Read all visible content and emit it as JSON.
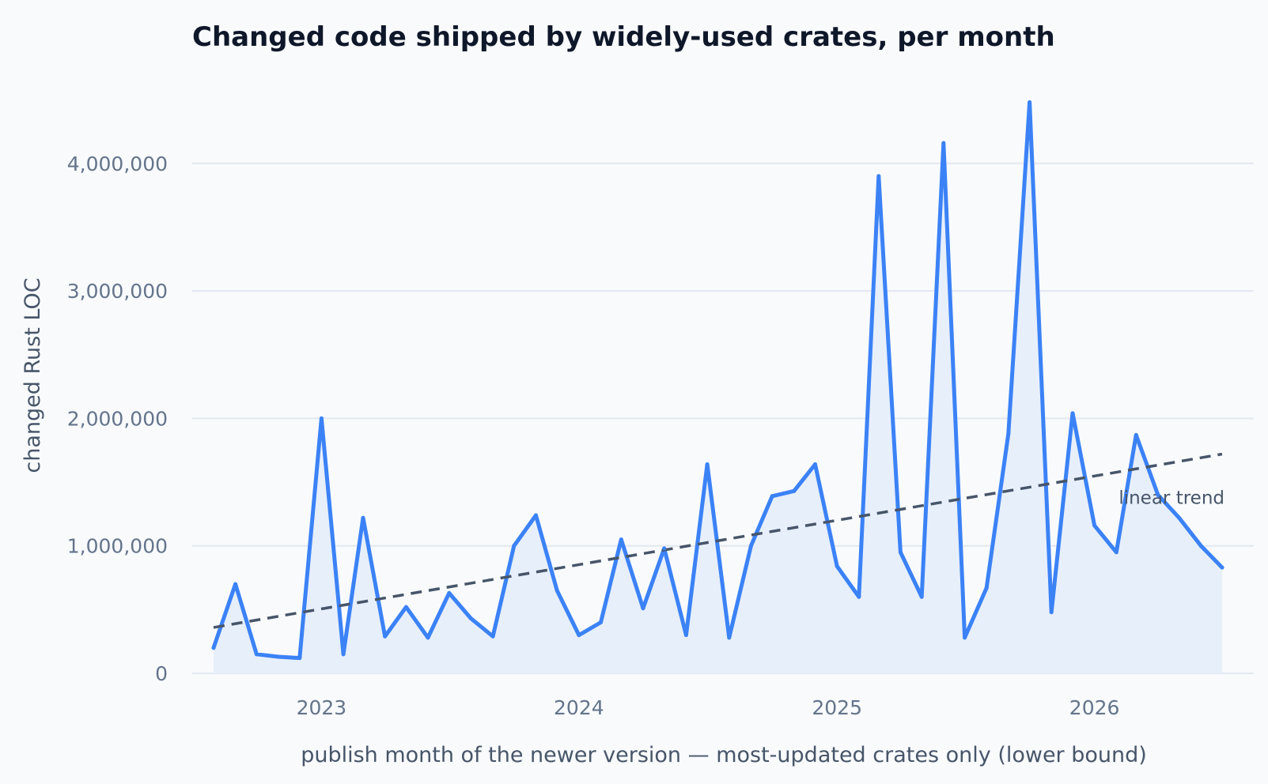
{
  "chart_data": {
    "type": "area",
    "title": "Changed code shipped by widely-used crates, per month",
    "xlabel": "publish month of the newer version — most-updated crates only (lower bound)",
    "ylabel": "changed Rust LOC",
    "ylim": [
      0,
      4600000
    ],
    "yticks": [
      0,
      1000000,
      2000000,
      3000000,
      4000000
    ],
    "ytick_labels": [
      "0",
      "1,000,000",
      "2,000,000",
      "3,000,000",
      "4,000,000"
    ],
    "xticks": [
      "2023-01",
      "2024-01",
      "2025-01",
      "2026-01"
    ],
    "xtick_labels": [
      "2023",
      "2024",
      "2025",
      "2026"
    ],
    "grid": true,
    "series": [
      {
        "x": [
          "2022-08",
          "2022-09",
          "2022-10",
          "2022-11",
          "2022-12",
          "2023-01",
          "2023-02",
          "2023-03",
          "2023-04",
          "2023-05",
          "2023-06",
          "2023-07",
          "2023-08",
          "2023-09",
          "2023-10",
          "2023-11",
          "2023-12",
          "2024-01",
          "2024-02",
          "2024-03",
          "2024-04",
          "2024-05",
          "2024-06",
          "2024-07",
          "2024-08",
          "2024-09",
          "2024-10",
          "2024-11",
          "2024-12",
          "2025-01",
          "2025-02",
          "2025-03",
          "2025-04",
          "2025-05",
          "2025-06",
          "2025-07",
          "2025-08",
          "2025-09",
          "2025-10",
          "2025-11",
          "2025-12",
          "2026-01",
          "2026-02",
          "2026-03",
          "2026-04",
          "2026-05",
          "2026-06",
          "2026-07"
        ],
        "values": [
          200000,
          700000,
          150000,
          130000,
          120000,
          2000000,
          150000,
          1220000,
          290000,
          520000,
          280000,
          630000,
          430000,
          290000,
          1000000,
          1240000,
          650000,
          300000,
          400000,
          1050000,
          510000,
          980000,
          300000,
          1640000,
          280000,
          1000000,
          1390000,
          1430000,
          1640000,
          840000,
          600000,
          3900000,
          950000,
          600000,
          4160000,
          280000,
          670000,
          1880000,
          4480000,
          480000,
          2040000,
          1160000,
          950000,
          1870000,
          1400000,
          1220000,
          1000000,
          830000
        ],
        "color": "#3b82f6",
        "fill": "#e7effb"
      }
    ],
    "trend": {
      "name": "linear trend",
      "start": {
        "x": "2022-08",
        "y": 360000
      },
      "end": {
        "x": "2026-07",
        "y": 1720000
      },
      "color": "#475569"
    },
    "gridline_color": "#e2e8f0",
    "background": "#f8fafc"
  }
}
